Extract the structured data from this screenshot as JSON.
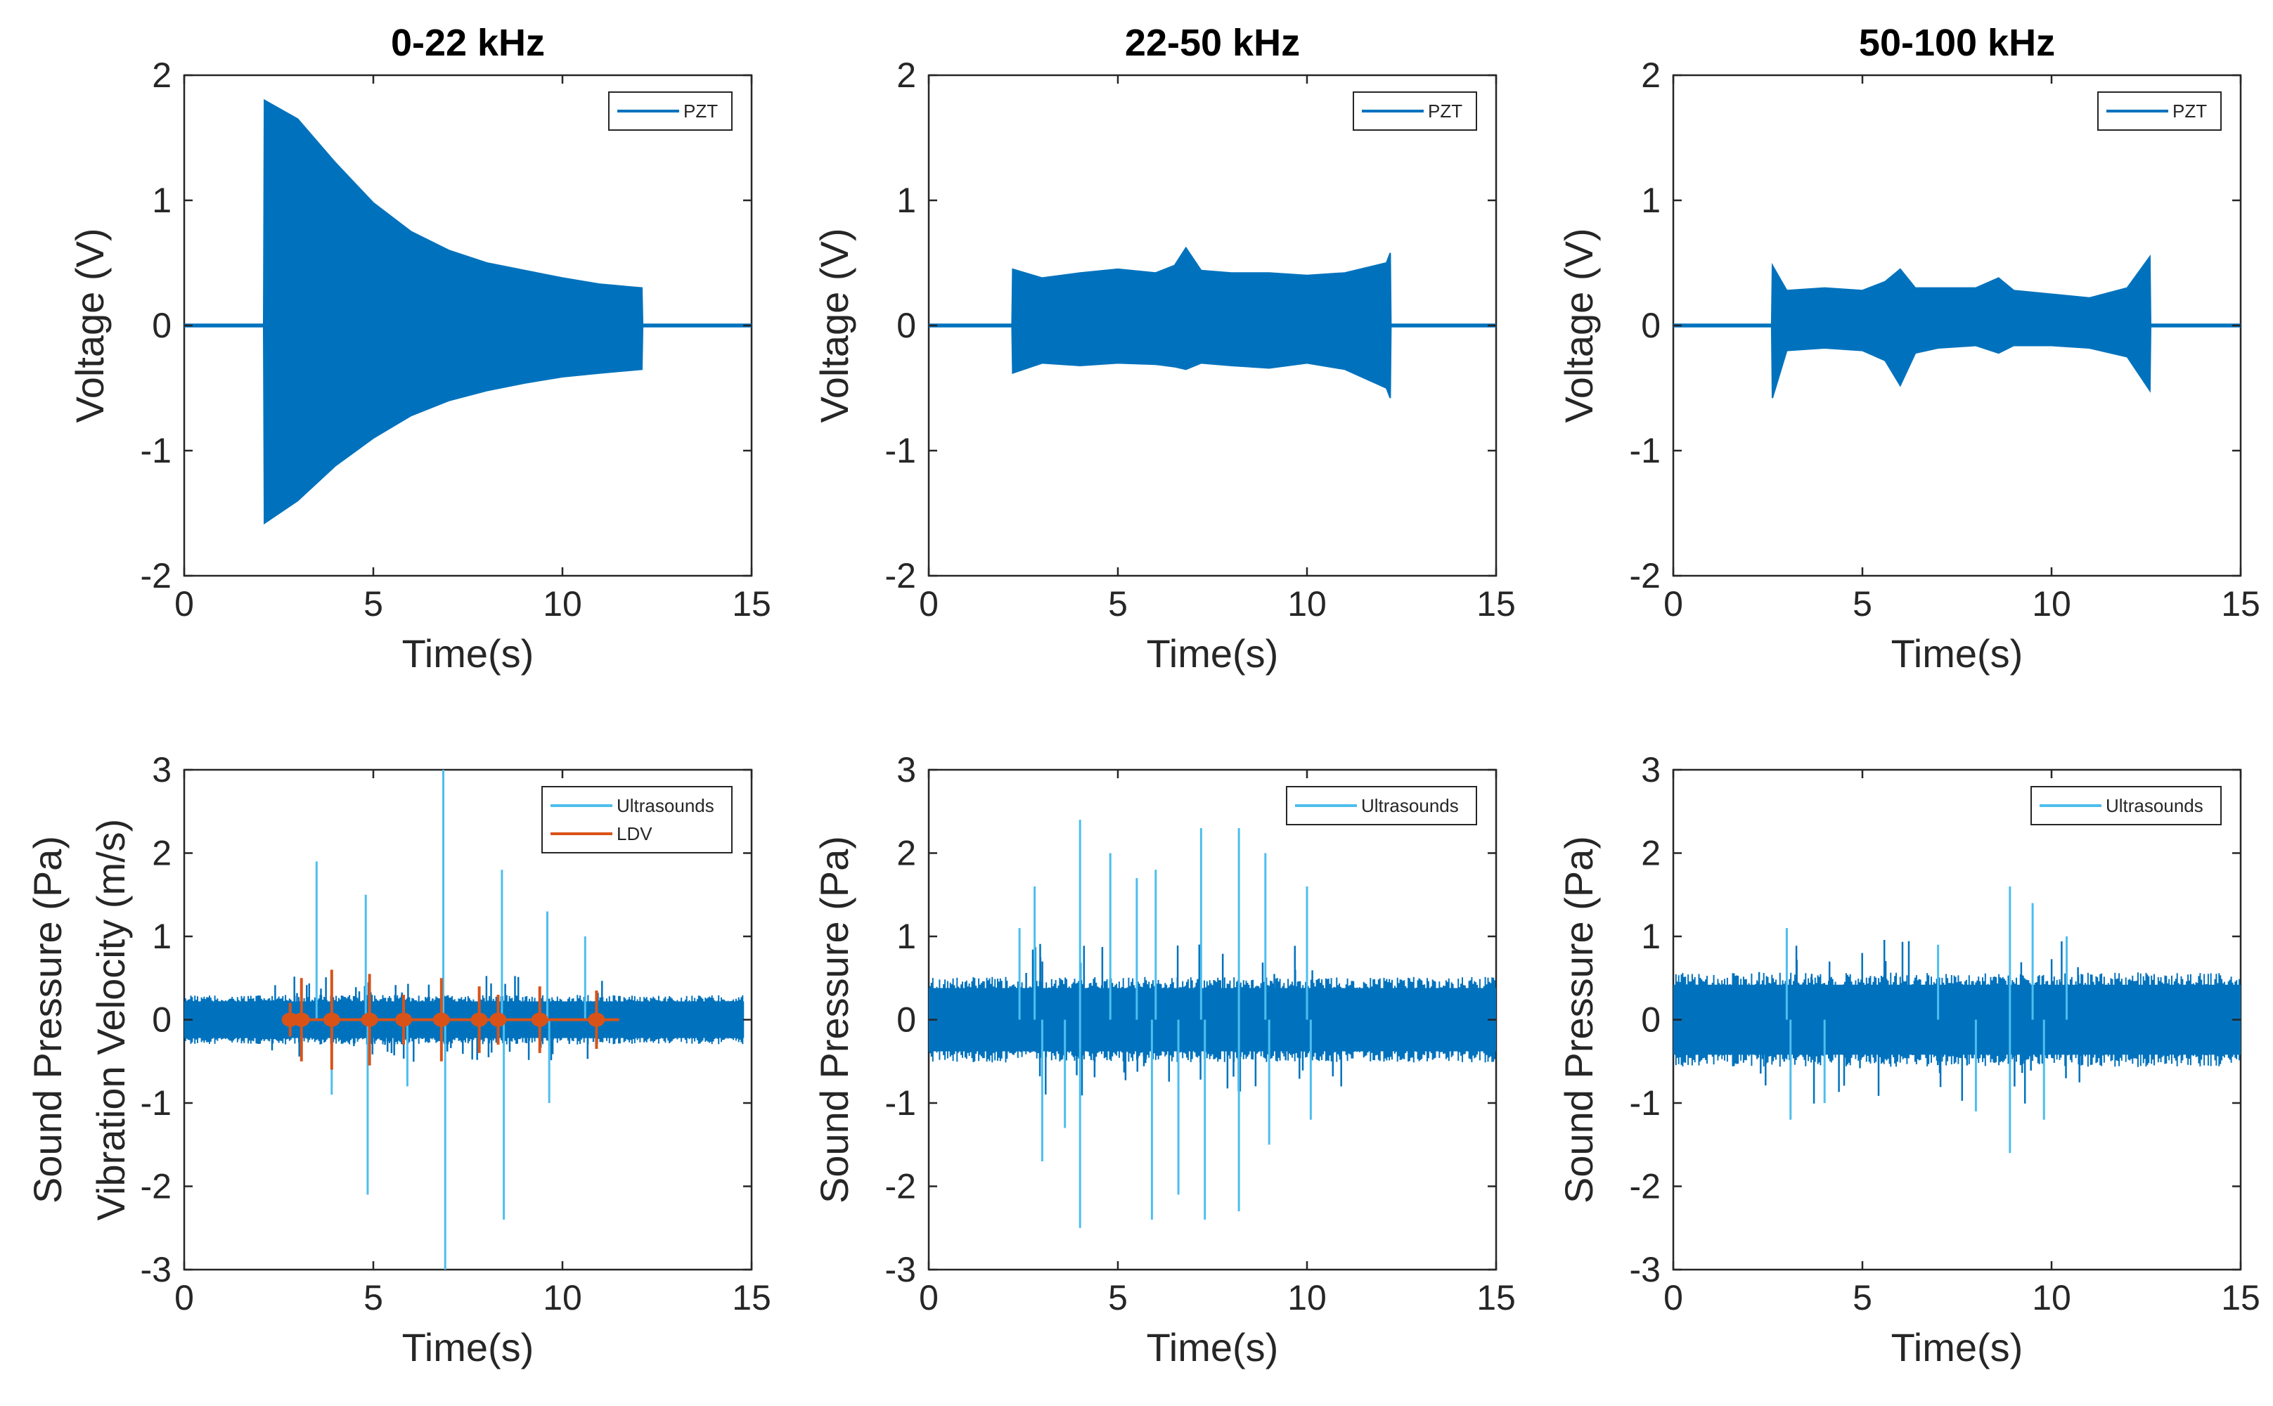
{
  "chart_data": [
    {
      "type": "line",
      "title": "0-22 kHz",
      "xlabel": "Time(s)",
      "ylabel": [
        "Voltage (V)"
      ],
      "xlim": [
        0,
        15
      ],
      "ylim": [
        -2,
        2
      ],
      "xticks": [
        "0",
        "5",
        "10",
        "15"
      ],
      "yticks": [
        "-2",
        "-1",
        "0",
        "1",
        "2"
      ],
      "series": [
        {
          "name": "PZT",
          "color": "#0072BD",
          "envelope": {
            "t": [
              0,
              2.1,
              2.12,
              3,
              4,
              5,
              6,
              7,
              8,
              9,
              10,
              11,
              12.1,
              12.12,
              15
            ],
            "upper": [
              0.01,
              0.01,
              1.8,
              1.65,
              1.3,
              0.98,
              0.75,
              0.6,
              0.5,
              0.44,
              0.38,
              0.33,
              0.3,
              0.01,
              0.01
            ],
            "lower": [
              -0.01,
              -0.01,
              -1.58,
              -1.4,
              -1.12,
              -0.9,
              -0.72,
              -0.6,
              -0.52,
              -0.46,
              -0.41,
              -0.38,
              -0.35,
              -0.01,
              -0.01
            ]
          }
        }
      ]
    },
    {
      "type": "line",
      "title": "22-50 kHz",
      "xlabel": "Time(s)",
      "ylabel": [
        "Voltage (V)"
      ],
      "xlim": [
        0,
        15
      ],
      "ylim": [
        -2,
        2
      ],
      "xticks": [
        "0",
        "5",
        "10",
        "15"
      ],
      "yticks": [
        "-2",
        "-1",
        "0",
        "1",
        "2"
      ],
      "series": [
        {
          "name": "PZT",
          "color": "#0072BD",
          "envelope": {
            "t": [
              0,
              2.2,
              2.22,
              3,
              4,
              5,
              6,
              6.5,
              6.8,
              7.2,
              8,
              9,
              10,
              11,
              12.1,
              12.2,
              12.22,
              15
            ],
            "upper": [
              0.01,
              0.01,
              0.45,
              0.38,
              0.42,
              0.45,
              0.42,
              0.48,
              0.62,
              0.44,
              0.42,
              0.42,
              0.4,
              0.42,
              0.5,
              0.58,
              0.01,
              0.01
            ],
            "lower": [
              -0.01,
              -0.01,
              -0.38,
              -0.3,
              -0.32,
              -0.3,
              -0.31,
              -0.33,
              -0.35,
              -0.3,
              -0.32,
              -0.34,
              -0.3,
              -0.35,
              -0.5,
              -0.58,
              -0.01,
              -0.01
            ]
          }
        }
      ]
    },
    {
      "type": "line",
      "title": "50-100 kHz",
      "xlabel": "Time(s)",
      "ylabel": [
        "Voltage (V)"
      ],
      "xlim": [
        0,
        15
      ],
      "ylim": [
        -2,
        2
      ],
      "xticks": [
        "0",
        "5",
        "10",
        "15"
      ],
      "yticks": [
        "-2",
        "-1",
        "0",
        "1",
        "2"
      ],
      "series": [
        {
          "name": "PZT",
          "color": "#0072BD",
          "envelope": {
            "t": [
              0,
              2.6,
              2.62,
              3,
              4,
              5,
              5.6,
              6.0,
              6.4,
              7,
              8,
              8.6,
              9,
              10,
              11,
              12,
              12.6,
              12.62,
              15
            ],
            "upper": [
              0.01,
              0.01,
              0.48,
              0.28,
              0.3,
              0.28,
              0.35,
              0.45,
              0.3,
              0.3,
              0.3,
              0.38,
              0.28,
              0.25,
              0.22,
              0.3,
              0.55,
              0.01,
              0.01
            ],
            "lower": [
              -0.01,
              -0.01,
              -0.58,
              -0.2,
              -0.18,
              -0.2,
              -0.28,
              -0.48,
              -0.22,
              -0.18,
              -0.16,
              -0.22,
              -0.16,
              -0.16,
              -0.18,
              -0.25,
              -0.52,
              -0.01,
              -0.01
            ]
          }
        }
      ]
    },
    {
      "type": "line",
      "title": "",
      "xlabel": "Time(s)",
      "ylabel": [
        "Sound Pressure (Pa)",
        "Vibration Velocity (m/s)"
      ],
      "xlim": [
        0,
        15
      ],
      "ylim": [
        -3,
        3
      ],
      "xticks": [
        "0",
        "5",
        "10",
        "15"
      ],
      "yticks": [
        "-3",
        "-2",
        "-1",
        "0",
        "1",
        "2",
        "3"
      ],
      "series": [
        {
          "name": "Ultrasounds",
          "color": "#4DBEEE",
          "fill": "#0072BD",
          "t_range": [
            0,
            14.8
          ],
          "noise": 0.22,
          "spikes": [
            {
              "t": 3.5,
              "amp": 1.9
            },
            {
              "t": 4.8,
              "amp": 1.5
            },
            {
              "t": 4.85,
              "amp": -2.1
            },
            {
              "t": 6.85,
              "amp": 3.0
            },
            {
              "t": 6.9,
              "amp": -3.0
            },
            {
              "t": 8.4,
              "amp": 1.8
            },
            {
              "t": 8.45,
              "amp": -2.4
            },
            {
              "t": 9.6,
              "amp": 1.3
            },
            {
              "t": 9.65,
              "amp": -1.0
            },
            {
              "t": 10.6,
              "amp": 1.0
            },
            {
              "t": 3.9,
              "amp": -0.9
            },
            {
              "t": 5.9,
              "amp": -0.8
            }
          ]
        },
        {
          "name": "LDV",
          "color": "#D95319",
          "bursts": [
            {
              "t": 2.8,
              "amp": 0.2
            },
            {
              "t": 3.1,
              "amp": 0.5
            },
            {
              "t": 3.9,
              "amp": 0.6
            },
            {
              "t": 4.9,
              "amp": 0.55
            },
            {
              "t": 5.8,
              "amp": 0.3
            },
            {
              "t": 6.8,
              "amp": 0.5
            },
            {
              "t": 7.8,
              "amp": 0.4
            },
            {
              "t": 8.3,
              "amp": 0.3
            },
            {
              "t": 9.4,
              "amp": 0.4
            },
            {
              "t": 10.9,
              "amp": 0.35
            }
          ]
        }
      ]
    },
    {
      "type": "line",
      "title": "",
      "xlabel": "Time(s)",
      "ylabel": [
        "Sound Pressure (Pa)"
      ],
      "xlim": [
        0,
        15
      ],
      "ylim": [
        -3,
        3
      ],
      "xticks": [
        "0",
        "5",
        "10",
        "15"
      ],
      "yticks": [
        "-3",
        "-2",
        "-1",
        "0",
        "1",
        "2",
        "3"
      ],
      "series": [
        {
          "name": "Ultrasounds",
          "color": "#4DBEEE",
          "fill": "#0072BD",
          "t_range": [
            0,
            15
          ],
          "noise": 0.38,
          "spikes": [
            {
              "t": 2.4,
              "amp": 1.1
            },
            {
              "t": 2.8,
              "amp": 1.6
            },
            {
              "t": 3.0,
              "amp": -1.7
            },
            {
              "t": 4.0,
              "amp": 2.4
            },
            {
              "t": 4.0,
              "amp": -2.5
            },
            {
              "t": 4.8,
              "amp": 2.0
            },
            {
              "t": 5.5,
              "amp": 1.7
            },
            {
              "t": 5.9,
              "amp": -2.4
            },
            {
              "t": 6.0,
              "amp": 1.8
            },
            {
              "t": 6.6,
              "amp": -2.1
            },
            {
              "t": 7.2,
              "amp": 2.3
            },
            {
              "t": 7.3,
              "amp": -2.4
            },
            {
              "t": 8.2,
              "amp": 2.3
            },
            {
              "t": 8.2,
              "amp": -2.3
            },
            {
              "t": 8.9,
              "amp": 2.0
            },
            {
              "t": 9.0,
              "amp": -1.5
            },
            {
              "t": 10.0,
              "amp": 1.6
            },
            {
              "t": 10.1,
              "amp": -1.2
            },
            {
              "t": 3.6,
              "amp": -1.3
            }
          ]
        }
      ]
    },
    {
      "type": "line",
      "title": "",
      "xlabel": "Time(s)",
      "ylabel": [
        "Sound Pressure (Pa)"
      ],
      "xlim": [
        0,
        15
      ],
      "ylim": [
        -3,
        3
      ],
      "xticks": [
        "0",
        "5",
        "10",
        "15"
      ],
      "yticks": [
        "-3",
        "-2",
        "-1",
        "0",
        "1",
        "2",
        "3"
      ],
      "series": [
        {
          "name": "Ultrasounds",
          "color": "#4DBEEE",
          "fill": "#0072BD",
          "t_range": [
            0,
            15
          ],
          "noise": 0.42,
          "spikes": [
            {
              "t": 3.0,
              "amp": 1.1
            },
            {
              "t": 3.1,
              "amp": -1.2
            },
            {
              "t": 4.0,
              "amp": -1.0
            },
            {
              "t": 7.0,
              "amp": 0.9
            },
            {
              "t": 8.9,
              "amp": 1.6
            },
            {
              "t": 8.9,
              "amp": -1.6
            },
            {
              "t": 9.5,
              "amp": 1.4
            },
            {
              "t": 9.8,
              "amp": -1.2
            },
            {
              "t": 10.4,
              "amp": 1.0
            },
            {
              "t": 8.0,
              "amp": -1.1
            }
          ]
        }
      ]
    }
  ]
}
